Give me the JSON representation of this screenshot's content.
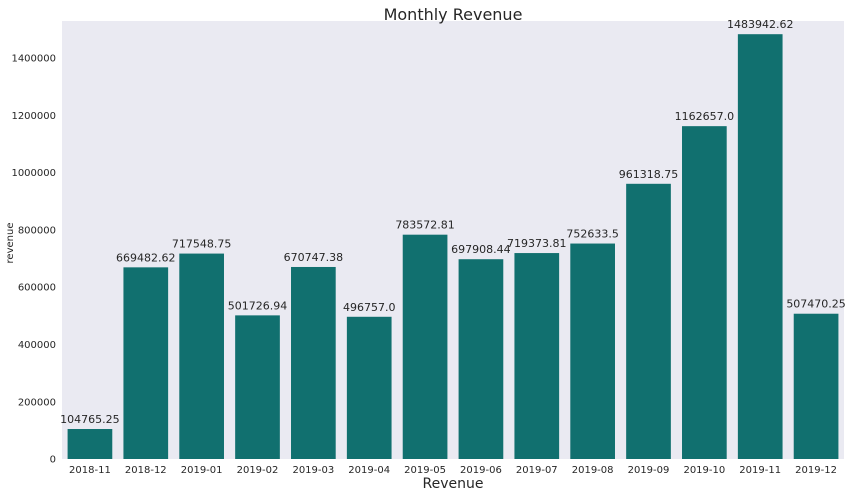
{
  "chart_data": {
    "type": "bar",
    "title": "Monthly Revenue",
    "xlabel": "Revenue",
    "ylabel": "revenue",
    "categories": [
      "2018-11",
      "2018-12",
      "2019-01",
      "2019-02",
      "2019-03",
      "2019-04",
      "2019-05",
      "2019-06",
      "2019-07",
      "2019-08",
      "2019-09",
      "2019-10",
      "2019-11",
      "2019-12"
    ],
    "values": [
      104765.25,
      669482.62,
      717548.75,
      501726.94,
      670747.38,
      496757.0,
      783572.81,
      697908.44,
      719373.81,
      752633.5,
      961318.75,
      1162657.0,
      1483942.62,
      507470.25
    ],
    "labels": [
      "104765.25",
      "669482.62",
      "717548.75",
      "501726.94",
      "670747.38",
      "496757.0",
      "783572.81",
      "697908.44",
      "719373.81",
      "752633.5",
      "961318.75",
      "1162657.0",
      "1483942.62",
      "507470.25"
    ],
    "ylim": [
      0,
      1530000
    ],
    "yticks": [
      0,
      200000,
      400000,
      600000,
      800000,
      1000000,
      1200000,
      1400000
    ],
    "ytick_labels": [
      "0",
      "200000",
      "400000",
      "600000",
      "800000",
      "1000000",
      "1200000",
      "1400000"
    ],
    "grid": false,
    "colors": {
      "bar": "#11706f",
      "plot_background": "#eaeaf2",
      "text": "#262626"
    }
  }
}
